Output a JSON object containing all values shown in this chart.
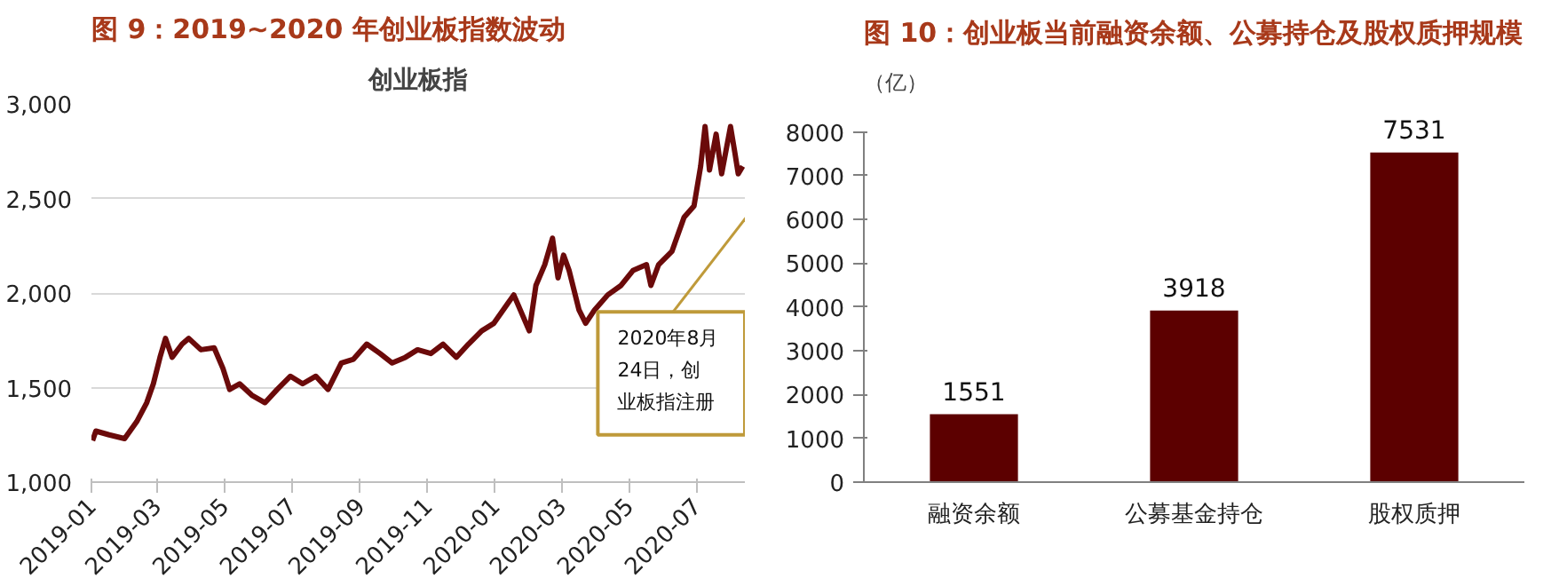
{
  "chart_data": [
    {
      "type": "line",
      "title": "图 9：2019~2020 年创业板指数波动",
      "subtitle": "创业板指",
      "color": "#6b0a0a",
      "grid": "y",
      "x": [
        "2019-01-02",
        "2019-01-05",
        "2019-01-17",
        "2019-01-31",
        "2019-02-11",
        "2019-02-20",
        "2019-02-26",
        "2019-03-04",
        "2019-03-09",
        "2019-03-15",
        "2019-03-24",
        "2019-03-30",
        "2019-04-10",
        "2019-04-22",
        "2019-04-30",
        "2019-05-06",
        "2019-05-15",
        "2019-05-26",
        "2019-06-07",
        "2019-06-18",
        "2019-06-30",
        "2019-07-11",
        "2019-07-23",
        "2019-08-03",
        "2019-08-15",
        "2019-08-26",
        "2019-09-07",
        "2019-09-19",
        "2019-09-30",
        "2019-10-12",
        "2019-10-23",
        "2019-11-04",
        "2019-11-15",
        "2019-11-27",
        "2019-12-08",
        "2019-12-20",
        "2019-12-31",
        "2020-01-12",
        "2020-01-18",
        "2020-02-01",
        "2020-02-07",
        "2020-02-15",
        "2020-02-22",
        "2020-02-27",
        "2020-03-03",
        "2020-03-08",
        "2020-03-17",
        "2020-03-23",
        "2020-03-31",
        "2020-04-12",
        "2020-04-24",
        "2020-05-05",
        "2020-05-17",
        "2020-05-21",
        "2020-05-28",
        "2020-06-09",
        "2020-06-20",
        "2020-06-29",
        "2020-07-05",
        "2020-07-09",
        "2020-07-13",
        "2020-07-19",
        "2020-07-24",
        "2020-08-01",
        "2020-08-05",
        "2020-08-08",
        "2020-08-12"
      ],
      "values": [
        1220,
        1270,
        1250,
        1230,
        1320,
        1420,
        1520,
        1660,
        1760,
        1660,
        1730,
        1760,
        1700,
        1710,
        1600,
        1490,
        1520,
        1460,
        1420,
        1490,
        1560,
        1520,
        1560,
        1490,
        1630,
        1650,
        1730,
        1680,
        1630,
        1660,
        1700,
        1680,
        1730,
        1660,
        1730,
        1800,
        1840,
        1940,
        1990,
        1800,
        2040,
        2150,
        2290,
        2080,
        2200,
        2120,
        1910,
        1840,
        1910,
        1990,
        2040,
        2120,
        2150,
        2040,
        2150,
        2220,
        2400,
        2460,
        2670,
        2880,
        2650,
        2840,
        2630,
        2880,
        2740,
        2630,
        2670
      ],
      "xlim": [
        "2019-01-01",
        "2020-08-14"
      ],
      "xticks": [
        "2019-01",
        "2019-03",
        "2019-05",
        "2019-07",
        "2019-09",
        "2019-11",
        "2020-01",
        "2020-03",
        "2020-05",
        "2020-07"
      ],
      "ylim": [
        1000,
        3000
      ],
      "yticks": [
        {
          "value": 1000,
          "label": "1,000"
        },
        {
          "value": 1500,
          "label": "1,500"
        },
        {
          "value": 2000,
          "label": "2,000"
        },
        {
          "value": 2500,
          "label": "2,500"
        },
        {
          "value": 3000,
          "label": "3,000"
        }
      ],
      "annotations": [
        "2020年8月24日，创业板指注册"
      ]
    },
    {
      "type": "bar",
      "title": "图 10：创业板当前融资余额、公募持仓及股权质押规模",
      "ylabel": "（亿）",
      "color": "#5c0000",
      "categories": [
        "融资余额",
        "公募基金持仓",
        "股权质押"
      ],
      "values": [
        1551,
        3918,
        7531
      ],
      "data_labels": true,
      "ylim": [
        0,
        8000
      ],
      "yticks": [
        0,
        1000,
        2000,
        3000,
        4000,
        5000,
        6000,
        7000,
        8000
      ]
    }
  ]
}
